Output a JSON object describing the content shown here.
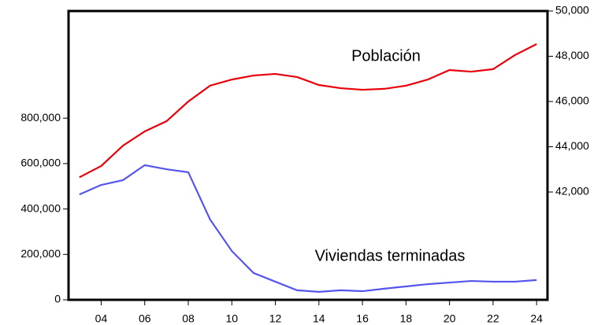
{
  "chart_data": {
    "type": "line",
    "x": [
      2003,
      2004,
      2005,
      2006,
      2007,
      2008,
      2009,
      2010,
      2011,
      2012,
      2013,
      2014,
      2015,
      2016,
      2017,
      2018,
      2019,
      2020,
      2021,
      2022,
      2023,
      2024
    ],
    "series": [
      {
        "name": "Población",
        "color": "#e8000b",
        "axis": "y2",
        "values": [
          42650,
          43150,
          44050,
          44680,
          45130,
          46000,
          46700,
          46970,
          47150,
          47220,
          47080,
          46730,
          46590,
          46520,
          46560,
          46700,
          46970,
          47390,
          47320,
          47430,
          48050,
          48540
        ]
      },
      {
        "name": "Viviendas terminadas",
        "color": "#5555ee",
        "values": [
          464000,
          506000,
          527000,
          593000,
          575000,
          562000,
          354000,
          215000,
          118000,
          80000,
          42000,
          35000,
          42000,
          38000,
          49000,
          59000,
          69000,
          76000,
          83000,
          80000,
          80000,
          87000
        ]
      }
    ],
    "xlim": [
      2002.5,
      2024.5
    ],
    "xticks": [
      {
        "value": 2004,
        "label": "04"
      },
      {
        "value": 2006,
        "label": "06"
      },
      {
        "value": 2008,
        "label": "08"
      },
      {
        "value": 2010,
        "label": "10"
      },
      {
        "value": 2012,
        "label": "12"
      },
      {
        "value": 2014,
        "label": "14"
      },
      {
        "value": 2016,
        "label": "16"
      },
      {
        "value": 2018,
        "label": "18"
      },
      {
        "value": 2020,
        "label": "20"
      },
      {
        "value": 2022,
        "label": "22"
      },
      {
        "value": 2024,
        "label": "24"
      }
    ],
    "ylim": [
      0,
      1272000
    ],
    "yticks": [
      0,
      {
        "value": 200000,
        "label": "200,000"
      },
      {
        "value": 400000,
        "label": "400,000"
      },
      {
        "value": 600000,
        "label": "600,000"
      },
      {
        "value": 800000,
        "label": "800,000"
      }
    ],
    "y2lim": [
      37235,
      50000
    ],
    "y2ticks": [
      {
        "value": 42000,
        "label": "42,000"
      },
      {
        "value": 44000,
        "label": "44,000"
      },
      {
        "value": 46000,
        "label": "46,000"
      },
      {
        "value": 48000,
        "label": "48,000"
      },
      {
        "value": 50000,
        "label": "50,000"
      }
    ]
  }
}
